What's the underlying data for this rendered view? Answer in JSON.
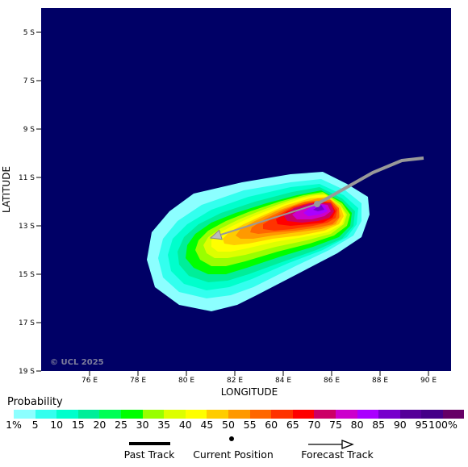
{
  "map": {
    "lat_ticks": [
      "5 S",
      "7 S",
      "9 S",
      "11 S",
      "13 S",
      "15 S",
      "17 S",
      "19 S"
    ],
    "lon_ticks": [
      "76 E",
      "78 E",
      "80 E",
      "82 E",
      "84 E",
      "86 E",
      "88 E",
      "90 E"
    ],
    "xlabel": "LONGITUDE",
    "ylabel": "LATITUDE",
    "watermark": "© UCL 2025",
    "background_color": "#000066"
  },
  "legend": {
    "title": "Probability",
    "labels": [
      "1%",
      "5",
      "10",
      "15",
      "20",
      "25",
      "30",
      "35",
      "40",
      "45",
      "50",
      "55",
      "60",
      "65",
      "70",
      "75",
      "80",
      "85",
      "90",
      "95",
      "100%"
    ],
    "colors": [
      "#8cffff",
      "#33ffee",
      "#00ffcc",
      "#00ee99",
      "#00ff55",
      "#00ff00",
      "#99ff00",
      "#ddff00",
      "#ffff00",
      "#ffcc00",
      "#ff9900",
      "#ff6600",
      "#ff3300",
      "#ff0000",
      "#cc0066",
      "#cc00cc",
      "#aa00ff",
      "#7700cc",
      "#550099",
      "#440088",
      "#660066"
    ]
  },
  "key": {
    "past_track": "Past Track",
    "current_position": "Current Position",
    "forecast_track": "Forecast Track"
  },
  "track": {
    "past": [
      [
        89.8,
        -10.2
      ],
      [
        88.9,
        -10.3
      ],
      [
        87.7,
        -10.8
      ],
      [
        85.4,
        -12.1
      ]
    ],
    "current": [
      85.4,
      -12.1
    ],
    "forecast_end": [
      81.0,
      -13.5
    ]
  }
}
